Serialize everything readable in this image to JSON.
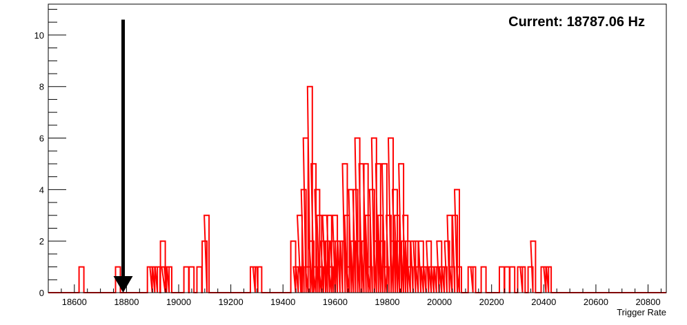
{
  "chart_data": {
    "type": "histogram",
    "title": "",
    "xlabel": "Trigger Rate",
    "ylabel": "",
    "xlim": [
      18500,
      20870
    ],
    "ylim": [
      0,
      11.2
    ],
    "x_ticks": [
      18600,
      18800,
      19000,
      19200,
      19400,
      19600,
      19800,
      20000,
      20200,
      20400,
      20600,
      20800
    ],
    "y_ticks": [
      0,
      2,
      4,
      6,
      8,
      10
    ],
    "grid": false,
    "line_color": "#ff0000",
    "annotation": {
      "text": "Current: 18787.06 Hz",
      "arrow_x": 18787.06,
      "arrow_from_y": 10.6,
      "arrow_to_y": 0,
      "arrow_color": "#000000"
    },
    "bins": [
      [
        18618,
        1
      ],
      [
        18758,
        1
      ],
      [
        18880,
        1
      ],
      [
        18890,
        1
      ],
      [
        18900,
        1
      ],
      [
        18910,
        1
      ],
      [
        18930,
        2
      ],
      [
        18935,
        1
      ],
      [
        18945,
        1
      ],
      [
        18955,
        1
      ],
      [
        19020,
        1
      ],
      [
        19040,
        1
      ],
      [
        19070,
        1
      ],
      [
        19090,
        2
      ],
      [
        19098,
        3
      ],
      [
        19275,
        1
      ],
      [
        19285,
        1
      ],
      [
        19300,
        1
      ],
      [
        19430,
        2
      ],
      [
        19440,
        1
      ],
      [
        19450,
        1
      ],
      [
        19455,
        3
      ],
      [
        19462,
        1
      ],
      [
        19470,
        4
      ],
      [
        19478,
        6
      ],
      [
        19486,
        1
      ],
      [
        19494,
        8
      ],
      [
        19500,
        2
      ],
      [
        19508,
        5
      ],
      [
        19515,
        1
      ],
      [
        19522,
        4
      ],
      [
        19530,
        3
      ],
      [
        19537,
        1
      ],
      [
        19545,
        2
      ],
      [
        19552,
        3
      ],
      [
        19560,
        2
      ],
      [
        19568,
        3
      ],
      [
        19575,
        1
      ],
      [
        19582,
        2
      ],
      [
        19590,
        3
      ],
      [
        19600,
        2
      ],
      [
        19610,
        2
      ],
      [
        19620,
        2
      ],
      [
        19628,
        5
      ],
      [
        19636,
        3
      ],
      [
        19644,
        1
      ],
      [
        19652,
        4
      ],
      [
        19660,
        2
      ],
      [
        19668,
        4
      ],
      [
        19676,
        6
      ],
      [
        19684,
        2
      ],
      [
        19692,
        5
      ],
      [
        19700,
        2
      ],
      [
        19708,
        5
      ],
      [
        19716,
        3
      ],
      [
        19724,
        1
      ],
      [
        19732,
        4
      ],
      [
        19740,
        6
      ],
      [
        19748,
        2
      ],
      [
        19756,
        5
      ],
      [
        19764,
        3
      ],
      [
        19772,
        2
      ],
      [
        19780,
        5
      ],
      [
        19788,
        1
      ],
      [
        19796,
        3
      ],
      [
        19804,
        6
      ],
      [
        19812,
        2
      ],
      [
        19820,
        4
      ],
      [
        19828,
        3
      ],
      [
        19836,
        2
      ],
      [
        19844,
        5
      ],
      [
        19852,
        2
      ],
      [
        19860,
        3
      ],
      [
        19870,
        2
      ],
      [
        19880,
        1
      ],
      [
        19890,
        2
      ],
      [
        19900,
        2
      ],
      [
        19910,
        1
      ],
      [
        19920,
        2
      ],
      [
        19930,
        1
      ],
      [
        19940,
        1
      ],
      [
        19950,
        2
      ],
      [
        19960,
        1
      ],
      [
        19970,
        1
      ],
      [
        19980,
        1
      ],
      [
        19990,
        2
      ],
      [
        20000,
        1
      ],
      [
        20010,
        1
      ],
      [
        20020,
        2
      ],
      [
        20030,
        3
      ],
      [
        20040,
        1
      ],
      [
        20050,
        3
      ],
      [
        20058,
        4
      ],
      [
        20066,
        1
      ],
      [
        20110,
        1
      ],
      [
        20120,
        1
      ],
      [
        20160,
        1
      ],
      [
        20230,
        1
      ],
      [
        20250,
        1
      ],
      [
        20270,
        1
      ],
      [
        20300,
        1
      ],
      [
        20310,
        1
      ],
      [
        20340,
        1
      ],
      [
        20350,
        2
      ],
      [
        20390,
        1
      ],
      [
        20400,
        1
      ],
      [
        20410,
        1
      ]
    ]
  }
}
